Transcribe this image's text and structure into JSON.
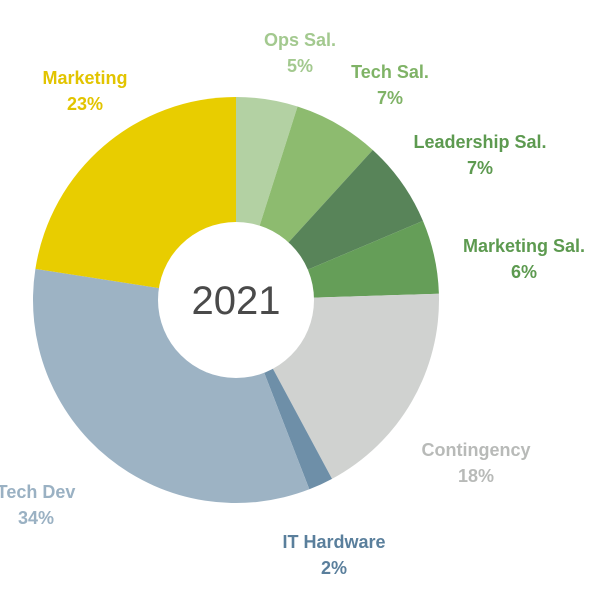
{
  "chart_data": {
    "type": "pie",
    "center_label": "2021",
    "slices": [
      {
        "label": "Ops Sal.",
        "percent_label": "5%",
        "value": 5,
        "color": "#b3d1a3"
      },
      {
        "label": "Tech Sal.",
        "percent_label": "7%",
        "value": 7,
        "color": "#8dbb6f"
      },
      {
        "label": "Leadership Sal.",
        "percent_label": "7%",
        "value": 7,
        "color": "#588459"
      },
      {
        "label": "Marketing Sal.",
        "percent_label": "6%",
        "value": 6,
        "color": "#659e58"
      },
      {
        "label": "Contingency",
        "percent_label": "18%",
        "value": 18,
        "color": "#d0d2d0"
      },
      {
        "label": "IT Hardware",
        "percent_label": "2%",
        "value": 2,
        "color": "#6e8fa8"
      },
      {
        "label": "Tech Dev",
        "percent_label": "34%",
        "value": 34,
        "color": "#9db3c4"
      },
      {
        "label": "Marketing",
        "percent_label": "23%",
        "value": 23,
        "color": "#e8cd00"
      }
    ],
    "label_colors": {
      "Ops Sal.": "#a3c98f",
      "Tech Sal.": "#7fb366",
      "Leadership Sal.": "#5d9a50",
      "Marketing Sal.": "#5d9a50",
      "Contingency": "#b8bab8",
      "IT Hardware": "#5a7f9c",
      "Tech Dev": "#9ab1c3",
      "Marketing": "#e2c400"
    }
  }
}
